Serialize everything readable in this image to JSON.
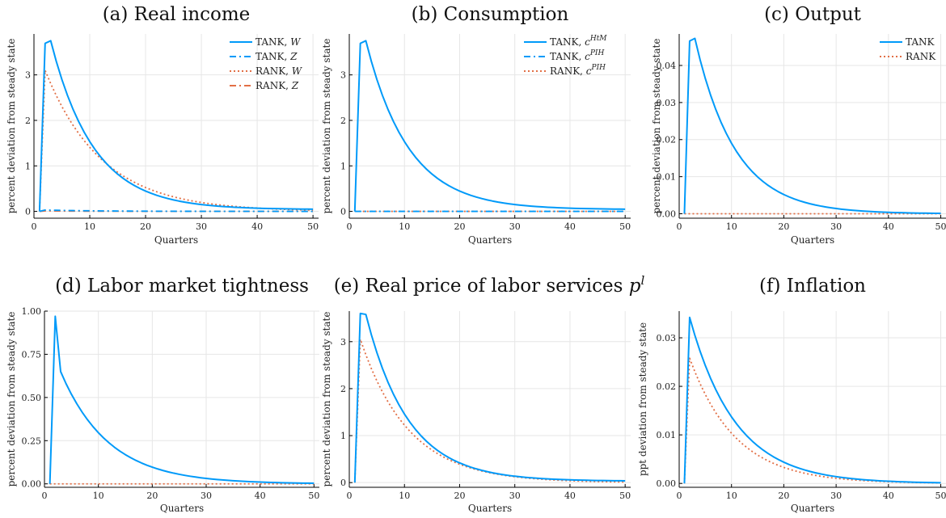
{
  "colors": {
    "tank": "#009af9",
    "rank": "#e26f46",
    "grid": "#e6e6e6",
    "axis": "#000000"
  },
  "chart_data": [
    {
      "type": "line",
      "title": "(a) Real income",
      "xlabel": "Quarters",
      "ylabel": "percent deviation from steady state",
      "xlim": [
        0,
        51
      ],
      "ylim": [
        -0.15,
        3.9
      ],
      "xticks": [
        0,
        10,
        20,
        30,
        40,
        50
      ],
      "xtick_labels": [
        "0",
        "10",
        "20",
        "30",
        "40",
        "50"
      ],
      "yticks": [
        0,
        1,
        2,
        3
      ],
      "ytick_labels": [
        "0",
        "1",
        "2",
        "3"
      ],
      "grid": true,
      "legend": "top-right",
      "series": [
        {
          "name": "TANK, W",
          "legend_main": "TANK, ",
          "legend_var": "W",
          "style": "solid",
          "color": "tank",
          "peak_q": 3,
          "peak": 3.75,
          "decay": 0.878,
          "floor": 0.04
        },
        {
          "name": "TANK, Z",
          "legend_main": "TANK, ",
          "legend_var": "Z",
          "style": "dashdot",
          "color": "tank",
          "peak_q": 2,
          "peak": 0.03,
          "decay": 0.9,
          "floor": 0.0
        },
        {
          "name": "RANK, W",
          "legend_main": "RANK, ",
          "legend_var": "W",
          "style": "dotted",
          "color": "rank",
          "peak_q": 2,
          "peak": 3.1,
          "decay": 0.906,
          "floor": 0.0
        },
        {
          "name": "RANK, Z",
          "legend_main": "RANK, ",
          "legend_var": "Z",
          "style": "dashdot",
          "color": "rank",
          "peak_q": 2,
          "peak": 0.01,
          "decay": 0.9,
          "floor": 0.0
        }
      ]
    },
    {
      "type": "line",
      "title": "(b) Consumption",
      "xlabel": "Quarters",
      "ylabel": "percent deviation from steady state",
      "xlim": [
        0,
        51
      ],
      "ylim": [
        -0.15,
        3.9
      ],
      "xticks": [
        0,
        10,
        20,
        30,
        40,
        50
      ],
      "xtick_labels": [
        "0",
        "10",
        "20",
        "30",
        "40",
        "50"
      ],
      "yticks": [
        0,
        1,
        2,
        3
      ],
      "ytick_labels": [
        "0",
        "1",
        "2",
        "3"
      ],
      "grid": true,
      "legend": "top-right",
      "series": [
        {
          "name": "TANK, c^HtM",
          "legend_main": "TANK, ",
          "legend_var": "c",
          "legend_sup": "HtM",
          "style": "solid",
          "color": "tank",
          "peak_q": 3,
          "peak": 3.75,
          "decay": 0.878,
          "floor": 0.04
        },
        {
          "name": "TANK, c^PIH",
          "legend_main": "TANK, ",
          "legend_var": "c",
          "legend_sup": "PIH",
          "style": "dashdot",
          "color": "tank",
          "peak_q": 2,
          "peak": 0.0,
          "decay": 0.9,
          "floor": 0.0
        },
        {
          "name": "RANK, c^PIH",
          "legend_main": "RANK, ",
          "legend_var": "c",
          "legend_sup": "PIH",
          "style": "dotted",
          "color": "rank",
          "peak_q": 2,
          "peak": 0.0,
          "decay": 0.9,
          "floor": 0.0
        }
      ]
    },
    {
      "type": "line",
      "title": "(c) Output",
      "xlabel": "Quarters",
      "ylabel": "percent deviation from steady state",
      "xlim": [
        0,
        51
      ],
      "ylim": [
        -0.0012,
        0.0485
      ],
      "xticks": [
        0,
        10,
        20,
        30,
        40,
        50
      ],
      "xtick_labels": [
        "0",
        "10",
        "20",
        "30",
        "40",
        "50"
      ],
      "yticks": [
        0,
        0.01,
        0.02,
        0.03,
        0.04
      ],
      "ytick_labels": [
        "0.00",
        "0.01",
        "0.02",
        "0.03",
        "0.04"
      ],
      "grid": true,
      "legend": "top-right",
      "series": [
        {
          "name": "TANK",
          "legend_main": "TANK",
          "style": "solid",
          "color": "tank",
          "peak_q": 3,
          "peak": 0.0473,
          "decay": 0.878,
          "floor": 0.0
        },
        {
          "name": "RANK",
          "legend_main": "RANK",
          "style": "dotted",
          "color": "rank",
          "peak_q": 2,
          "peak": 0.0,
          "decay": 0.9,
          "floor": 0.0
        }
      ]
    },
    {
      "type": "line",
      "title": "(d) Labor market tightness",
      "xlabel": "Quarters",
      "ylabel": "percent deviation from steady state",
      "xlim": [
        0,
        51
      ],
      "ylim": [
        -0.02,
        1.0
      ],
      "xticks": [
        0,
        10,
        20,
        30,
        40,
        50
      ],
      "xtick_labels": [
        "0",
        "10",
        "20",
        "30",
        "40",
        "50"
      ],
      "yticks": [
        0,
        0.25,
        0.5,
        0.75,
        1.0
      ],
      "ytick_labels": [
        "0.00",
        "0.25",
        "0.50",
        "0.75",
        "1.00"
      ],
      "grid": true,
      "legend": "none",
      "series": [
        {
          "name": "TANK",
          "style": "solid",
          "color": "tank",
          "points": [
            [
              1,
              0
            ],
            [
              2,
              0.97
            ],
            [
              3,
              0.65
            ],
            [
              4,
              0.58
            ]
          ],
          "from_q": 4,
          "peak": 0.58,
          "decay": 0.894,
          "floor": 0.0
        },
        {
          "name": "RANK",
          "style": "dotted",
          "color": "rank",
          "peak_q": 2,
          "peak": 0.0,
          "decay": 0.9,
          "floor": 0.0
        }
      ]
    },
    {
      "type": "line",
      "title": "(e) Real price of labor services",
      "title_var": "p",
      "title_sup": "l",
      "xlabel": "Quarters",
      "ylabel": "percent deviation from steady state",
      "xlim": [
        0,
        51
      ],
      "ylim": [
        -0.1,
        3.65
      ],
      "xticks": [
        0,
        10,
        20,
        30,
        40,
        50
      ],
      "xtick_labels": [
        "0",
        "10",
        "20",
        "30",
        "40",
        "50"
      ],
      "yticks": [
        0,
        1,
        2,
        3
      ],
      "ytick_labels": [
        "0",
        "1",
        "2",
        "3"
      ],
      "grid": true,
      "legend": "none",
      "series": [
        {
          "name": "TANK",
          "style": "solid",
          "color": "tank",
          "points": [
            [
              1,
              0
            ],
            [
              2,
              3.6
            ],
            [
              3,
              3.58
            ]
          ],
          "from_q": 3,
          "peak": 3.58,
          "decay": 0.878,
          "floor": 0.03
        },
        {
          "name": "RANK",
          "style": "dotted",
          "color": "rank",
          "peak_q": 2,
          "peak": 3.05,
          "decay": 0.892,
          "floor": 0.0
        }
      ]
    },
    {
      "type": "line",
      "title": "(f) Inflation",
      "xlabel": "Quarters",
      "ylabel": "ppt deviation from steady state",
      "xlim": [
        0,
        51
      ],
      "ylim": [
        -0.0008,
        0.0355
      ],
      "xticks": [
        0,
        10,
        20,
        30,
        40,
        50
      ],
      "xtick_labels": [
        "0",
        "10",
        "20",
        "30",
        "40",
        "50"
      ],
      "yticks": [
        0,
        0.01,
        0.02,
        0.03
      ],
      "ytick_labels": [
        "0.00",
        "0.01",
        "0.02",
        "0.03"
      ],
      "grid": true,
      "legend": "none",
      "series": [
        {
          "name": "TANK",
          "style": "solid",
          "color": "tank",
          "peak_q": 2,
          "peak": 0.0342,
          "decay": 0.892,
          "floor": 0.0
        },
        {
          "name": "RANK",
          "style": "dotted",
          "color": "rank",
          "peak_q": 2,
          "peak": 0.0258,
          "decay": 0.892,
          "floor": 0.0
        }
      ]
    }
  ]
}
